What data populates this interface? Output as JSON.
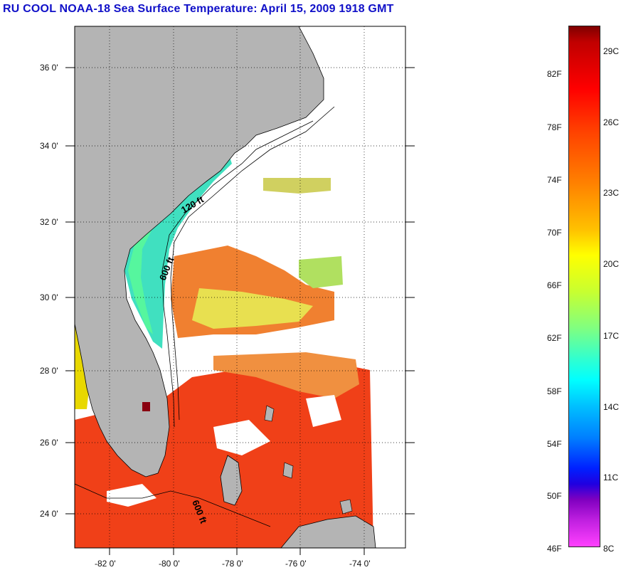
{
  "title": "RU COOL  NOAA-18  Sea Surface Temperature:  April 15, 2009 1918 GMT",
  "map": {
    "lat_labels": [
      "36 0'",
      "34 0'",
      "32 0'",
      "30 0'",
      "28 0'",
      "26 0'",
      "24 0'"
    ],
    "lon_labels": [
      "-82 0'",
      "-80 0'",
      "-78 0'",
      "-76 0'",
      "-74 0'"
    ],
    "depth_labels": [
      "120 ft",
      "600 ft",
      "600 ft"
    ]
  },
  "colorbar": {
    "fahrenheit_labels": [
      "82F",
      "78F",
      "74F",
      "70F",
      "66F",
      "62F",
      "58F",
      "54F",
      "50F",
      "46F"
    ],
    "celsius_labels": [
      "29C",
      "26C",
      "23C",
      "20C",
      "17C",
      "14C",
      "11C",
      "8C"
    ]
  },
  "colors": {
    "title": "#1010c8",
    "land": "#b4b4b4",
    "gulf_stream": "#f06a20",
    "shelf_water": "#40e0c0"
  }
}
